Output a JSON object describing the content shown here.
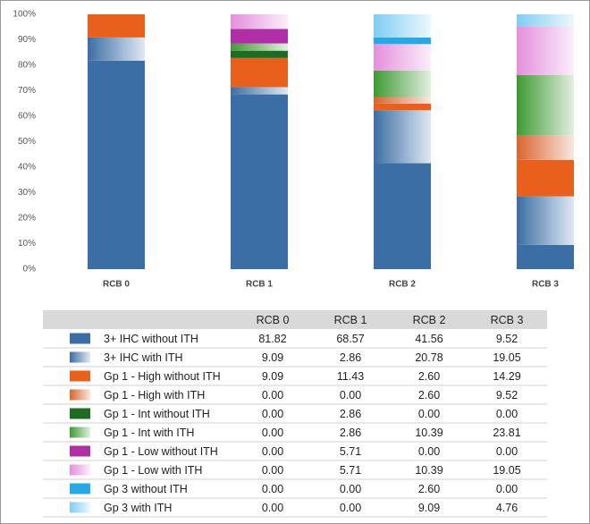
{
  "chart_data": {
    "type": "stacked_bar",
    "categories": [
      "RCB 0",
      "RCB 1",
      "RCB 2",
      "RCB 3"
    ],
    "ylim": [
      0,
      100
    ],
    "yticks": [
      {
        "value": 0,
        "label": "0%"
      },
      {
        "value": 10,
        "label": "10%"
      },
      {
        "value": 20,
        "label": "20%"
      },
      {
        "value": 30,
        "label": "30%"
      },
      {
        "value": 40,
        "label": "40%"
      },
      {
        "value": 50,
        "label": "50%"
      },
      {
        "value": 60,
        "label": "60%"
      },
      {
        "value": 70,
        "label": "70%"
      },
      {
        "value": 80,
        "label": "80%"
      },
      {
        "value": 90,
        "label": "90%"
      },
      {
        "value": 100,
        "label": "100%"
      }
    ],
    "grid": false,
    "series": [
      {
        "name": "3+ IHC without ITH",
        "color": "#3b6ea5",
        "gradient": false,
        "values": [
          81.82,
          68.57,
          41.56,
          9.52
        ],
        "value_labels": [
          "81.82",
          "68.57",
          "41.56",
          "9.52"
        ]
      },
      {
        "name": "3+ IHC with ITH",
        "color": "#3b6ea5",
        "gradient": true,
        "values": [
          9.09,
          2.86,
          20.78,
          19.05
        ],
        "value_labels": [
          "9.09",
          "2.86",
          "20.78",
          "19.05"
        ]
      },
      {
        "name": "Gp 1 - High without ITH",
        "color": "#e8601c",
        "gradient": false,
        "values": [
          9.09,
          11.43,
          2.6,
          14.29
        ],
        "value_labels": [
          "9.09",
          "11.43",
          "2.60",
          "14.29"
        ]
      },
      {
        "name": "Gp 1 - High with ITH",
        "color": "#d9652f",
        "gradient": true,
        "values": [
          0,
          0,
          2.6,
          9.52
        ],
        "value_labels": [
          "0.00",
          "0.00",
          "2.60",
          "9.52"
        ]
      },
      {
        "name": "Gp 1 - Int without ITH",
        "color": "#1e6b24",
        "gradient": false,
        "values": [
          0,
          2.86,
          0,
          0
        ],
        "value_labels": [
          "0.00",
          "2.86",
          "0.00",
          "0.00"
        ]
      },
      {
        "name": "Gp 1 - Int with ITH",
        "color": "#3f9a33",
        "gradient": true,
        "values": [
          0,
          2.86,
          10.39,
          23.81
        ],
        "value_labels": [
          "0.00",
          "2.86",
          "10.39",
          "23.81"
        ]
      },
      {
        "name": "Gp 1 - Low without ITH",
        "color": "#b02fa6",
        "gradient": false,
        "values": [
          0,
          5.71,
          0,
          0
        ],
        "value_labels": [
          "0.00",
          "5.71",
          "0.00",
          "0.00"
        ]
      },
      {
        "name": "Gp 1 - Low with ITH",
        "color": "#e58fdc",
        "gradient": true,
        "values": [
          0,
          5.71,
          10.39,
          19.05
        ],
        "value_labels": [
          "0.00",
          "5.71",
          "10.39",
          "19.05"
        ]
      },
      {
        "name": "Gp 3 without ITH",
        "color": "#29a8e6",
        "gradient": false,
        "values": [
          0,
          0,
          2.6,
          0
        ],
        "value_labels": [
          "0.00",
          "0.00",
          "2.60",
          "0.00"
        ]
      },
      {
        "name": "Gp 3 with ITH",
        "color": "#7fcdf3",
        "gradient": true,
        "values": [
          0,
          0,
          9.09,
          4.76
        ],
        "value_labels": [
          "0.00",
          "0.00",
          "9.09",
          "4.76"
        ]
      }
    ]
  }
}
